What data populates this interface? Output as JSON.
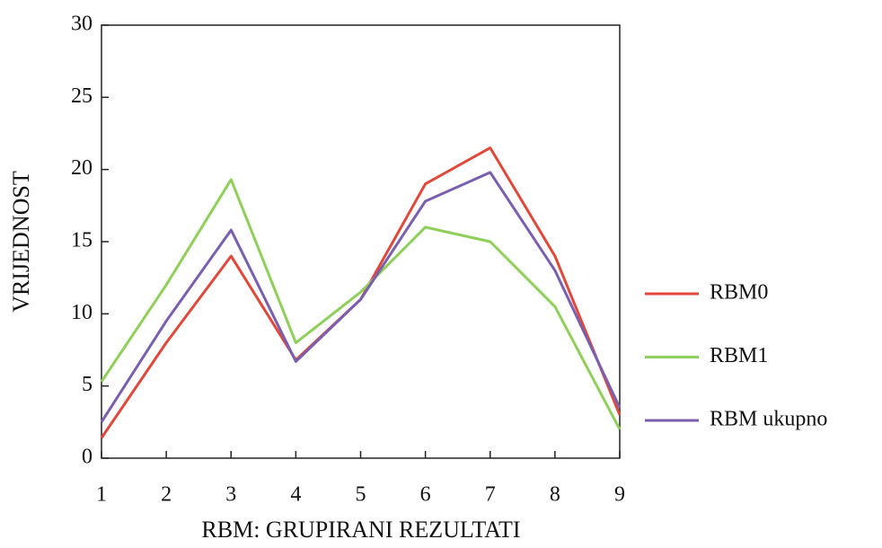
{
  "chart_data": {
    "type": "line",
    "x": [
      1,
      2,
      3,
      4,
      5,
      6,
      7,
      8,
      9
    ],
    "xlim": [
      1,
      9
    ],
    "xticks": [
      1,
      2,
      3,
      4,
      5,
      6,
      7,
      8,
      9
    ],
    "ylim": [
      0,
      30
    ],
    "yticks": [
      0,
      5,
      10,
      15,
      20,
      25,
      30
    ],
    "xlabel": "RBM: GRUPIRANI REZULTATI",
    "ylabel": "VRIJEDNOST",
    "legend": "right",
    "series": [
      {
        "name": "RBM0",
        "color": "#e0483a",
        "values": [
          1.4,
          8,
          14,
          6.8,
          11,
          19,
          21.5,
          14,
          3
        ]
      },
      {
        "name": "RBM1",
        "color": "#8fcf5a",
        "values": [
          5.3,
          12,
          19.3,
          8,
          11.5,
          16,
          15,
          10.5,
          2
        ]
      },
      {
        "name": "RBM ukupno",
        "color": "#7a5fb0",
        "values": [
          2.5,
          9.5,
          15.8,
          6.7,
          11,
          17.8,
          19.8,
          13,
          3.5
        ]
      }
    ]
  }
}
